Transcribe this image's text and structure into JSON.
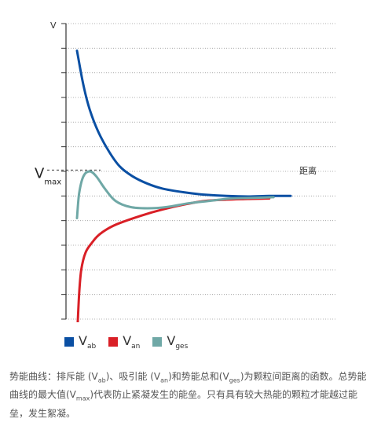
{
  "chart_data": {
    "type": "line",
    "ylabel": "V",
    "xlabel": "距离",
    "vmax_label": "V",
    "vmax_sub": "max",
    "vmax_value": 1.05,
    "xlim": [
      0,
      1
    ],
    "ylim": [
      -5,
      7
    ],
    "grid": "horizontal dotted",
    "legend_position": "bottom-left",
    "series": [
      {
        "name": "Vab",
        "name_main": "V",
        "name_sub": "ab",
        "color": "#0a4fa3",
        "x": [
          0.0,
          0.03,
          0.06,
          0.1,
          0.15,
          0.2,
          0.26,
          0.33,
          0.4,
          0.5,
          0.6,
          0.7,
          0.8,
          0.9,
          1.0
        ],
        "y": [
          5.9,
          4.5,
          3.5,
          2.6,
          1.8,
          1.2,
          0.8,
          0.5,
          0.3,
          0.15,
          0.05,
          0.0,
          -0.02,
          0.0,
          0.0
        ]
      },
      {
        "name": "Van",
        "name_main": "V",
        "name_sub": "an",
        "color": "#d91f26",
        "x": [
          0.0,
          0.01,
          0.02,
          0.04,
          0.07,
          0.1,
          0.15,
          0.2,
          0.3,
          0.4,
          0.5,
          0.6,
          0.7,
          0.8,
          0.9
        ],
        "y": [
          -5.8,
          -4.0,
          -3.0,
          -2.3,
          -1.9,
          -1.6,
          -1.3,
          -1.1,
          -0.8,
          -0.55,
          -0.35,
          -0.2,
          -0.15,
          -0.12,
          -0.1
        ]
      },
      {
        "name": "Vges",
        "name_main": "V",
        "name_sub": "ges",
        "color": "#6fa8a6",
        "x": [
          0.0,
          0.01,
          0.03,
          0.06,
          0.09,
          0.13,
          0.18,
          0.25,
          0.33,
          0.42,
          0.52,
          0.62,
          0.72,
          0.82,
          0.92
        ],
        "y": [
          -0.9,
          0.1,
          0.8,
          1.0,
          0.8,
          0.3,
          -0.2,
          -0.45,
          -0.5,
          -0.45,
          -0.3,
          -0.2,
          -0.1,
          -0.08,
          -0.05
        ]
      }
    ]
  },
  "caption": {
    "seg1": "势能曲线：排斥能 (V",
    "sub1": "ab",
    "seg2": ")、吸引能 (V",
    "sub2": "an",
    "seg3": ")和势能总和(V",
    "sub3": "ges",
    "seg4": ")为颗粒间距离的函数。总势能曲线的最大值(V",
    "sub4": "max",
    "seg5": ")代表防止紧凝发生的能垒。只有具有较大热能的颗粒才能越过能垒，发生絮凝。"
  }
}
